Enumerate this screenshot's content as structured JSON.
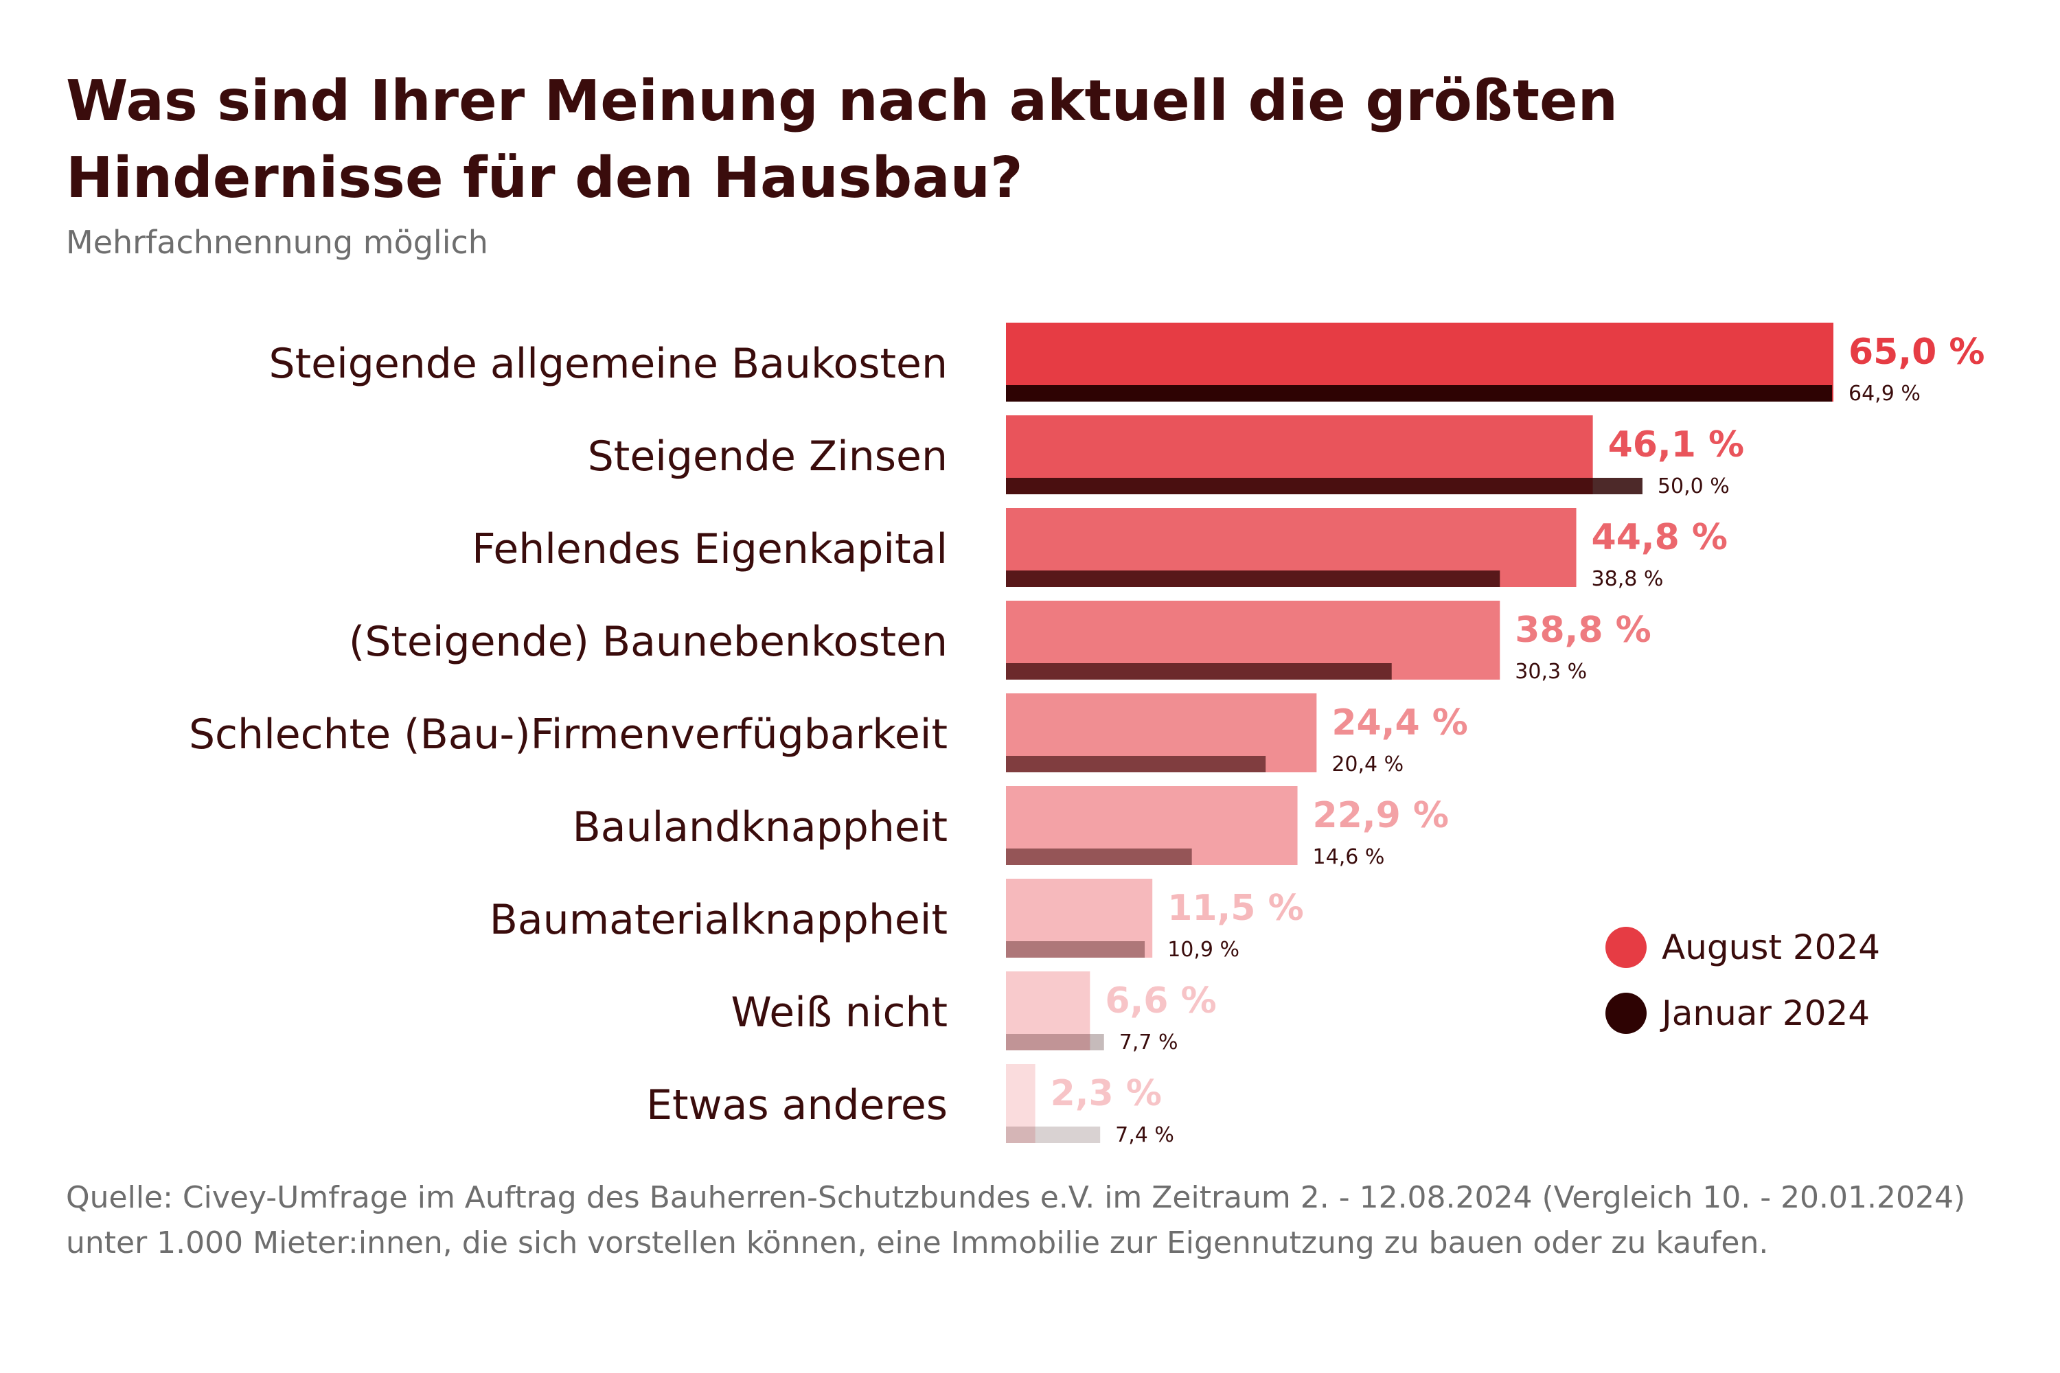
{
  "chart_data": {
    "type": "bar",
    "orientation": "horizontal",
    "title": "Was sind Ihrer Meinung nach aktuell die größten Hindernisse für den Hausbau?",
    "subtitle": "Mehrfachnennung möglich",
    "categories": [
      "Steigende allgemeine Baukosten",
      "Steigende Zinsen",
      "Fehlendes Eigenkapital",
      "(Steigende) Baunebenkosten",
      "Schlechte (Bau-)Firmenverfügbarkeit",
      "Baulandknappheit",
      "Baumaterialknappheit",
      "Weiß nicht",
      "Etwas anderes"
    ],
    "series": [
      {
        "name": "August 2024",
        "values": [
          65.0,
          46.1,
          44.8,
          38.8,
          24.4,
          22.9,
          11.5,
          6.6,
          2.3
        ],
        "labels": [
          "65,0 %",
          "46,1 %",
          "44,8 %",
          "38,8 %",
          "24,4 %",
          "22,9 %",
          "11,5 %",
          "6,6 %",
          "2,3 %"
        ],
        "color": "#e63c44"
      },
      {
        "name": "Januar 2024",
        "values": [
          64.9,
          50.0,
          38.8,
          30.3,
          20.4,
          14.6,
          10.9,
          7.7,
          7.4
        ],
        "labels": [
          "64,9 %",
          "50,0 %",
          "38,8 %",
          "30,3 %",
          "20,4 %",
          "14,6 %",
          "10,9 %",
          "7,7 %",
          "7,4 %"
        ],
        "color": "#2e0303"
      }
    ],
    "xlim": [
      0,
      65
    ],
    "grid": false,
    "legend_position": "bottom-right"
  },
  "legend": {
    "items": [
      {
        "label": "August 2024",
        "color": "#e63c44"
      },
      {
        "label": "Januar 2024",
        "color": "#2e0303"
      }
    ]
  },
  "source": "Quelle: Civey-Umfrage im Auftrag des Bauherren-Schutzbundes e.V. im Zeitraum 2. - 12.08.2024 (Vergleich 10. - 20.01.2024) unter 1.000 Mieter:innen, die sich vorstellen können, eine Immobilie zur Eigennutzung zu bauen oder zu kaufen."
}
